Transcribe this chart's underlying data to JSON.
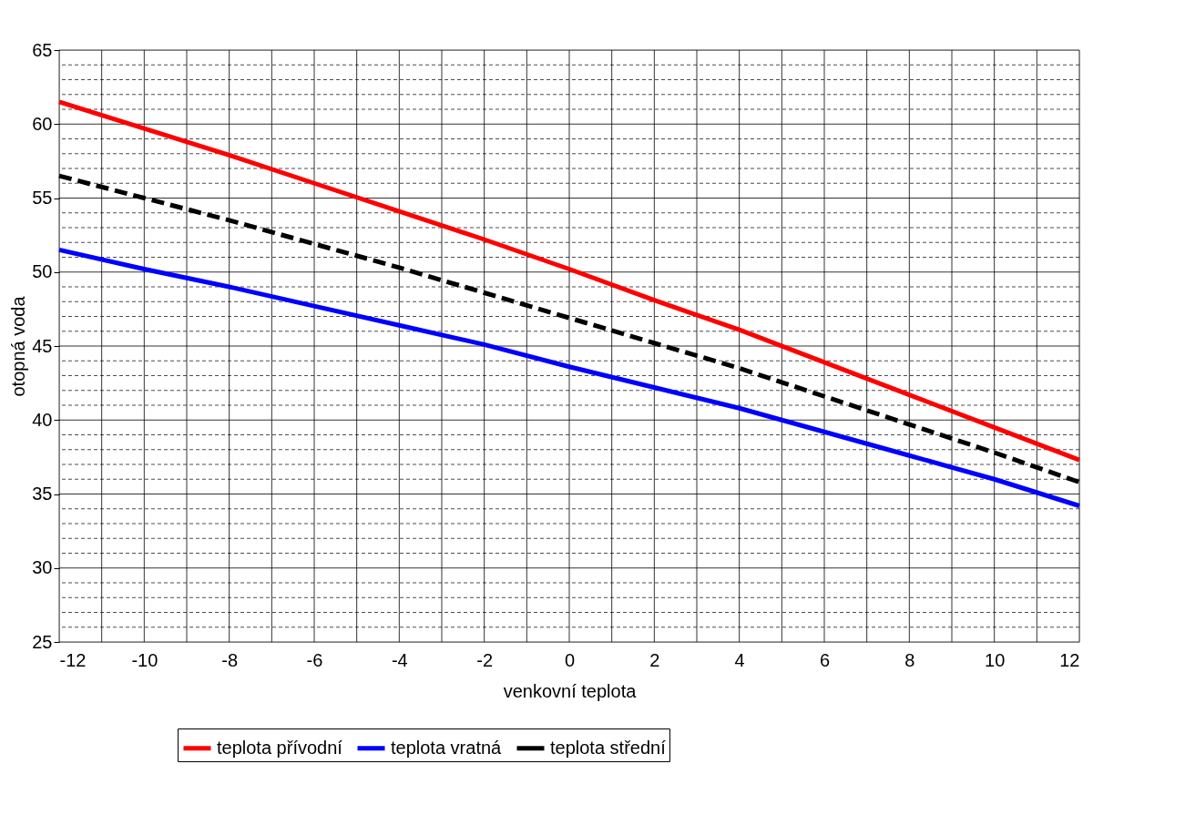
{
  "chart_data": {
    "type": "line",
    "xlabel": "venkovní teplota",
    "ylabel": "otopná voda",
    "x": [
      -12,
      -10,
      -8,
      -6,
      -4,
      -2,
      0,
      2,
      4,
      6,
      8,
      10,
      12
    ],
    "series": [
      {
        "name": "teplota přívodní",
        "color": "#ff0000",
        "line_style": "solid",
        "values": [
          61.5,
          59.7,
          57.9,
          56.0,
          54.1,
          52.2,
          50.2,
          48.1,
          46.1,
          43.9,
          41.7,
          39.5,
          37.3
        ]
      },
      {
        "name": "teplota vratná",
        "color": "#0000ff",
        "line_style": "solid",
        "values": [
          51.5,
          50.2,
          49.0,
          47.7,
          46.4,
          45.1,
          43.6,
          42.2,
          40.8,
          39.2,
          37.6,
          36.0,
          34.2
        ]
      },
      {
        "name": "teplota střední",
        "color": "#000000",
        "line_style": "dashed",
        "values": [
          56.5,
          55.0,
          53.5,
          51.9,
          50.3,
          48.6,
          46.9,
          45.2,
          43.5,
          41.6,
          39.7,
          37.8,
          35.8
        ]
      }
    ],
    "xlim": [
      -12,
      12
    ],
    "xticks": [
      -12,
      {
        "value": -11,
        "label": null
      },
      -10,
      {
        "value": -9,
        "label": null
      },
      -8,
      {
        "value": -7,
        "label": null
      },
      -6,
      {
        "value": -5,
        "label": null
      },
      -4,
      {
        "value": -3,
        "label": null
      },
      -2,
      {
        "value": -1,
        "label": null
      },
      0,
      {
        "value": 1,
        "label": null
      },
      2,
      {
        "value": 3,
        "label": null
      },
      4,
      {
        "value": 5,
        "label": null
      },
      6,
      {
        "value": 7,
        "label": null
      },
      8,
      {
        "value": 9,
        "label": null
      },
      10,
      {
        "value": 11,
        "label": null
      },
      12
    ],
    "ylim": [
      25,
      65
    ],
    "yticks": [
      25,
      {
        "value": 26,
        "label": null
      },
      {
        "value": 27,
        "label": null
      },
      {
        "value": 28,
        "label": null
      },
      {
        "value": 29,
        "label": null
      },
      30,
      {
        "value": 31,
        "label": null
      },
      {
        "value": 32,
        "label": null
      },
      {
        "value": 33,
        "label": null
      },
      {
        "value": 34,
        "label": null
      },
      35,
      {
        "value": 36,
        "label": null
      },
      {
        "value": 37,
        "label": null
      },
      {
        "value": 38,
        "label": null
      },
      {
        "value": 39,
        "label": null
      },
      40,
      {
        "value": 41,
        "label": null
      },
      {
        "value": 42,
        "label": null
      },
      {
        "value": 43,
        "label": null
      },
      {
        "value": 44,
        "label": null
      },
      45,
      {
        "value": 46,
        "label": null
      },
      {
        "value": 47,
        "label": null
      },
      {
        "value": 48,
        "label": null
      },
      {
        "value": 49,
        "label": null
      },
      50,
      {
        "value": 51,
        "label": null
      },
      {
        "value": 52,
        "label": null
      },
      {
        "value": 53,
        "label": null
      },
      {
        "value": 54,
        "label": null
      },
      55,
      {
        "value": 56,
        "label": null
      },
      {
        "value": 57,
        "label": null
      },
      {
        "value": 58,
        "label": null
      },
      {
        "value": 59,
        "label": null
      },
      60,
      {
        "value": 61,
        "label": null
      },
      {
        "value": 62,
        "label": null
      },
      {
        "value": 63,
        "label": null
      },
      {
        "value": 64,
        "label": null
      },
      65
    ],
    "grid": true,
    "legend": "bottom"
  }
}
